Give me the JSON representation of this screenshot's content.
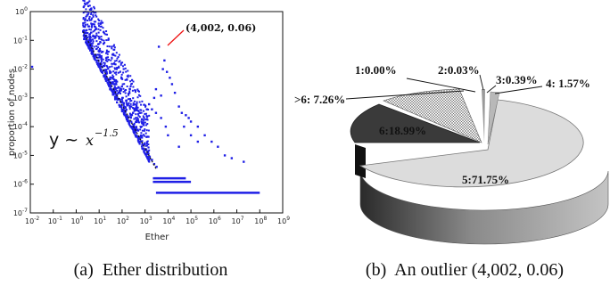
{
  "chart_data": [
    {
      "type": "scatter",
      "xlabel": "Ether",
      "ylabel": "proportion of nodes",
      "x_scale": "log",
      "y_scale": "log",
      "xlim": [
        0.01,
        1000000000
      ],
      "ylim": [
        1e-07,
        1
      ],
      "x_ticks": [
        {
          "base": "10",
          "exp": "-2"
        },
        {
          "base": "10",
          "exp": "-1"
        },
        {
          "base": "10",
          "exp": "0"
        },
        {
          "base": "10",
          "exp": "1"
        },
        {
          "base": "10",
          "exp": "2"
        },
        {
          "base": "10",
          "exp": "3"
        },
        {
          "base": "10",
          "exp": "4"
        },
        {
          "base": "10",
          "exp": "5"
        },
        {
          "base": "10",
          "exp": "6"
        },
        {
          "base": "10",
          "exp": "7"
        },
        {
          "base": "10",
          "exp": "8"
        },
        {
          "base": "10",
          "exp": "9"
        }
      ],
      "y_ticks": [
        {
          "base": "10",
          "exp": "-7"
        },
        {
          "base": "10",
          "exp": "-6"
        },
        {
          "base": "10",
          "exp": "-5"
        },
        {
          "base": "10",
          "exp": "-4"
        },
        {
          "base": "10",
          "exp": "-3"
        },
        {
          "base": "10",
          "exp": "-2"
        },
        {
          "base": "10",
          "exp": "-1"
        },
        {
          "base": "10",
          "exp": "0"
        }
      ],
      "fit": {
        "label_prefix": "y ~ ",
        "label_base": "x",
        "label_exp": "−1.5",
        "slope": -1.5
      },
      "annotation": {
        "text": "(4,002, 0.06)",
        "x": 4002,
        "y": 0.06
      },
      "series_color": "#1f1fe6",
      "points": [
        [
          0.012,
          0.012
        ],
        [
          2.0,
          0.2
        ],
        [
          4,
          0.08
        ],
        [
          5,
          0.045
        ],
        [
          6,
          0.03
        ],
        [
          8,
          0.02
        ],
        [
          10,
          0.012
        ],
        [
          13,
          0.008
        ],
        [
          16,
          0.006
        ],
        [
          20,
          0.004
        ],
        [
          25,
          0.003
        ],
        [
          30,
          0.002
        ],
        [
          40,
          0.0013
        ],
        [
          50,
          0.0009
        ],
        [
          60,
          0.0007
        ],
        [
          80,
          0.0005
        ],
        [
          100,
          0.00035
        ],
        [
          130,
          0.00025
        ],
        [
          160,
          0.00018
        ],
        [
          200,
          0.00013
        ],
        [
          250,
          0.0001
        ],
        [
          320,
          7e-05
        ],
        [
          400,
          5e-05
        ],
        [
          500,
          4e-05
        ],
        [
          650,
          3e-05
        ],
        [
          800,
          2.2e-05
        ],
        [
          1000,
          1.6e-05
        ],
        [
          1300,
          1.2e-05
        ],
        [
          1600,
          9e-06
        ],
        [
          2000,
          7e-06
        ],
        [
          2500,
          5e-06
        ],
        [
          3200,
          4e-06
        ],
        [
          4002,
          0.06
        ],
        [
          7000,
          0.02
        ],
        [
          6000,
          0.01
        ],
        [
          9000,
          0.008
        ],
        [
          12000,
          0.005
        ],
        [
          15000,
          0.003
        ],
        [
          20000,
          0.0015
        ],
        [
          3000,
          0.002
        ],
        [
          2500,
          0.001
        ],
        [
          5000,
          0.0012
        ],
        [
          30000,
          0.0005
        ],
        [
          40000,
          0.0003
        ],
        [
          60000,
          0.00025
        ],
        [
          80000,
          0.0002
        ],
        [
          100000,
          0.00015
        ],
        [
          200000,
          0.0001
        ],
        [
          400000,
          5e-05
        ],
        [
          800000,
          3e-05
        ],
        [
          1500000,
          2e-05
        ],
        [
          3000000,
          1e-05
        ],
        [
          6000000,
          8e-06
        ],
        [
          20000000,
          6e-06
        ],
        [
          50000,
          0.0001
        ],
        [
          100000,
          5e-05
        ],
        [
          200000,
          3e-05
        ],
        [
          30000,
          2e-05
        ],
        [
          10000,
          5e-05
        ],
        [
          8000,
          0.0001
        ],
        [
          5000,
          0.0002
        ],
        [
          3000,
          0.0003
        ],
        [
          2000,
          0.0004
        ],
        [
          1500,
          0.0006
        ],
        [
          1200,
          0.0004
        ],
        [
          900,
          0.0002
        ],
        [
          700,
          0.00015
        ],
        [
          600,
          0.0003
        ],
        [
          400,
          0.0002
        ],
        [
          300,
          0.0003
        ],
        [
          250,
          0.0005
        ],
        [
          180,
          0.0006
        ],
        [
          150,
          0.0008
        ],
        [
          120,
          0.0005
        ]
      ],
      "bands": [
        {
          "y": 1.6e-06,
          "x_min": 2200,
          "x_max": 60000
        },
        {
          "y": 1.2e-06,
          "x_min": 2200,
          "x_max": 100000
        },
        {
          "y": 5e-07,
          "x_min": 3000,
          "x_max": 100000000
        }
      ]
    },
    {
      "type": "pie",
      "slices": [
        {
          "label": "5:71.75%",
          "value": 71.75,
          "color": "#d8d8d8"
        },
        {
          "label": "6:18.99%",
          "value": 18.99,
          "color": "#3a3a3a"
        },
        {
          "label": ">6: 7.26%",
          "value": 7.26,
          "color": "#f2f2f2"
        },
        {
          "label": "1:0.00%",
          "value": 0.0,
          "color": "#ffffff"
        },
        {
          "label": "2:0.03%",
          "value": 0.03,
          "color": "#bcbcbc"
        },
        {
          "label": "3:0.39%",
          "value": 0.39,
          "color": "#9a9a9a"
        },
        {
          "label": "4: 1.57%",
          "value": 1.57,
          "color": "#c8c8c8"
        }
      ]
    }
  ],
  "captions": {
    "left": "(a)  Ether distribution",
    "right": "(b)  An outlier (4,002, 0.06)"
  }
}
